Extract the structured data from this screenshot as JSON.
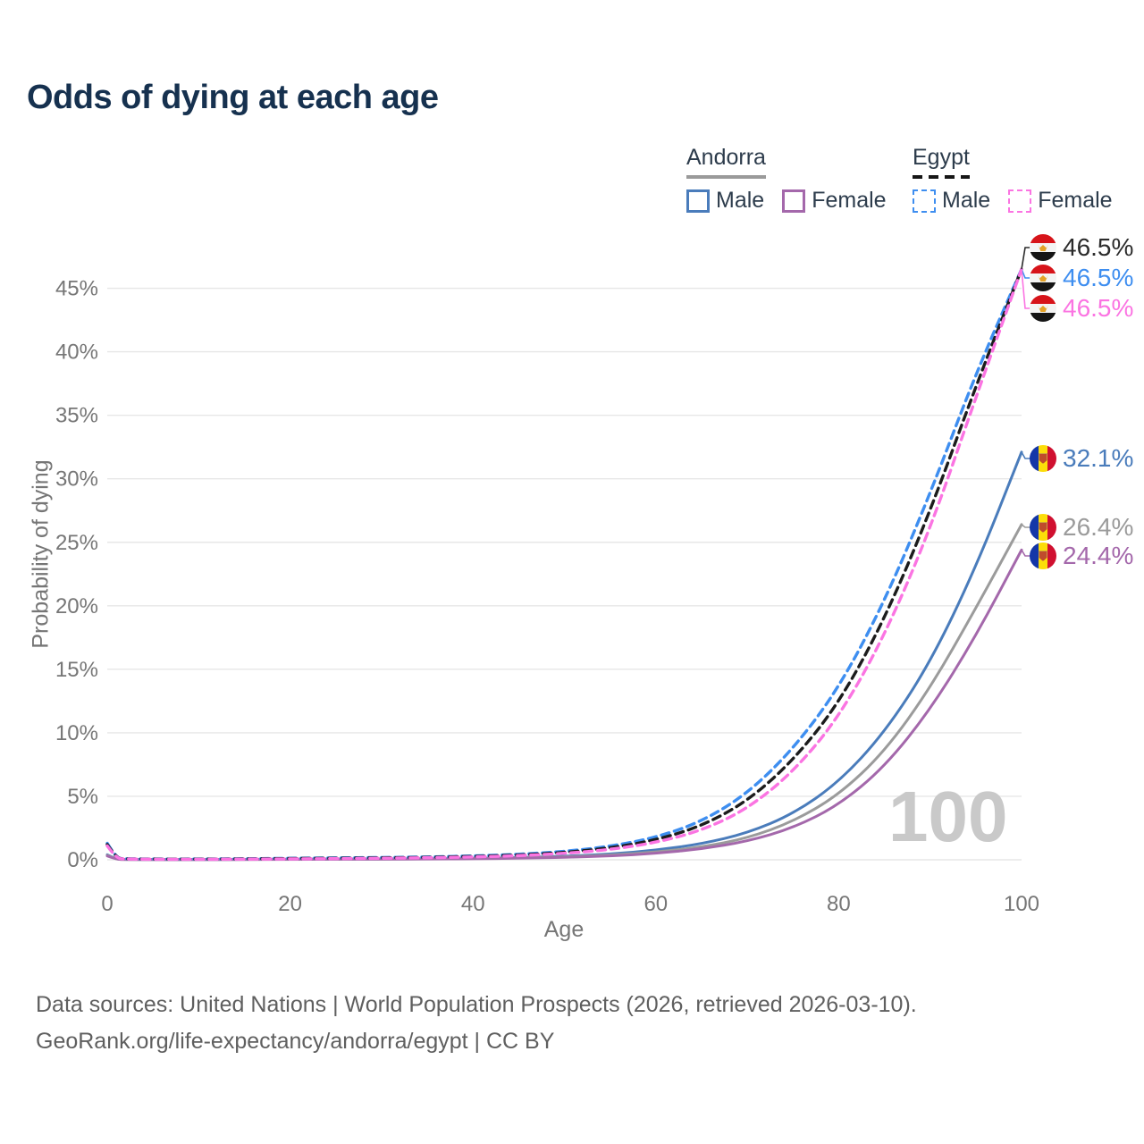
{
  "title": "Odds of dying at each age",
  "legend": {
    "groups": [
      {
        "country": "Andorra",
        "style": "solid",
        "entries": [
          {
            "label": "Male",
            "color": "#4a7cbb"
          },
          {
            "label": "Female",
            "color": "#a468ab"
          }
        ]
      },
      {
        "country": "Egypt",
        "style": "dashed",
        "entries": [
          {
            "label": "Male",
            "color": "#3e8ef0"
          },
          {
            "label": "Female",
            "color": "#fb74e2"
          }
        ]
      }
    ]
  },
  "watermark": "100",
  "end_labels": [
    {
      "series": "egypt-both",
      "text": "46.5%",
      "color": "#2b2b2b",
      "flag": "egypt"
    },
    {
      "series": "egypt-male",
      "text": "46.5%",
      "color": "#3e8ef0",
      "flag": "egypt"
    },
    {
      "series": "egypt-female",
      "text": "46.5%",
      "color": "#fb74e2",
      "flag": "egypt"
    },
    {
      "series": "andorra-male",
      "text": "32.1%",
      "color": "#4a7cbb",
      "flag": "andorra"
    },
    {
      "series": "andorra-both",
      "text": "26.4%",
      "color": "#9b9b9b",
      "flag": "andorra"
    },
    {
      "series": "andorra-female",
      "text": "24.4%",
      "color": "#a468ab",
      "flag": "andorra"
    }
  ],
  "footer": {
    "line1": "Data sources: United Nations | World Population Prospects (2026, retrieved 2026-03-10).",
    "line2": "GeoRank.org/life-expectancy/andorra/egypt | CC BY"
  },
  "chart_data": {
    "type": "line",
    "title": "Odds of dying at each age",
    "xlabel": "Age",
    "ylabel": "Probability of dying",
    "xlim": [
      0,
      100
    ],
    "ylim": [
      0,
      48
    ],
    "x_ticks": [
      0,
      20,
      40,
      60,
      80,
      100
    ],
    "y_ticks": [
      "0%",
      "5%",
      "10%",
      "15%",
      "20%",
      "25%",
      "30%",
      "35%",
      "40%",
      "45%"
    ],
    "grid": "horizontal",
    "legend_position": "top-right",
    "x": [
      0,
      1,
      2,
      5,
      10,
      15,
      20,
      25,
      30,
      35,
      40,
      45,
      50,
      55,
      60,
      65,
      70,
      75,
      80,
      85,
      90,
      95,
      100
    ],
    "series": [
      {
        "id": "andorra-male",
        "country": "Andorra",
        "sex": "Male",
        "style": "solid",
        "color": "#4a7cbb",
        "values": [
          0.4,
          0.04,
          0.03,
          0.02,
          0.02,
          0.03,
          0.05,
          0.06,
          0.07,
          0.09,
          0.12,
          0.18,
          0.28,
          0.45,
          0.75,
          1.25,
          2.1,
          3.6,
          6.1,
          10.0,
          15.5,
          23.0,
          32.1
        ]
      },
      {
        "id": "andorra-both",
        "country": "Andorra",
        "sex": "Both sexes",
        "style": "solid",
        "color": "#9b9b9b",
        "values": [
          0.35,
          0.035,
          0.025,
          0.02,
          0.02,
          0.025,
          0.04,
          0.05,
          0.06,
          0.07,
          0.1,
          0.15,
          0.23,
          0.37,
          0.6,
          1.0,
          1.7,
          3.0,
          5.1,
          8.5,
          13.5,
          19.8,
          26.4
        ]
      },
      {
        "id": "andorra-female",
        "country": "Andorra",
        "sex": "Female",
        "style": "solid",
        "color": "#a468ab",
        "values": [
          0.3,
          0.03,
          0.02,
          0.015,
          0.015,
          0.02,
          0.03,
          0.04,
          0.05,
          0.06,
          0.08,
          0.12,
          0.19,
          0.3,
          0.5,
          0.85,
          1.45,
          2.5,
          4.3,
          7.3,
          11.8,
          17.6,
          24.4
        ]
      },
      {
        "id": "egypt-male",
        "country": "Egypt",
        "sex": "Male",
        "style": "dashed",
        "color": "#3e8ef0",
        "values": [
          1.3,
          0.12,
          0.08,
          0.06,
          0.06,
          0.08,
          0.12,
          0.15,
          0.18,
          0.22,
          0.3,
          0.43,
          0.65,
          1.05,
          1.75,
          3.0,
          5.2,
          8.7,
          13.5,
          20.3,
          28.8,
          38.3,
          46.5
        ]
      },
      {
        "id": "egypt-both",
        "country": "Egypt",
        "sex": "Both sexes",
        "style": "dashed",
        "color": "#1c1c1c",
        "values": [
          1.2,
          0.11,
          0.07,
          0.05,
          0.05,
          0.07,
          0.1,
          0.12,
          0.15,
          0.19,
          0.26,
          0.37,
          0.57,
          0.92,
          1.55,
          2.65,
          4.6,
          7.8,
          12.3,
          18.9,
          27.4,
          37.3,
          46.5
        ]
      },
      {
        "id": "egypt-female",
        "country": "Egypt",
        "sex": "Female",
        "style": "dashed",
        "color": "#fb74e2",
        "values": [
          1.1,
          0.1,
          0.06,
          0.04,
          0.04,
          0.05,
          0.07,
          0.09,
          0.12,
          0.16,
          0.22,
          0.32,
          0.5,
          0.8,
          1.35,
          2.3,
          4.0,
          6.9,
          11.2,
          17.6,
          26.0,
          36.4,
          46.5
        ]
      }
    ]
  }
}
